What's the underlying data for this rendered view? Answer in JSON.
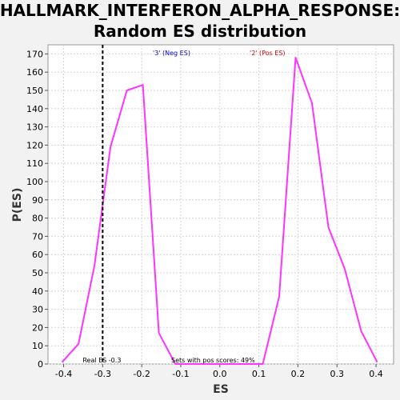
{
  "chart_data": {
    "type": "line",
    "title_line1": "HALLMARK_INTERFERON_ALPHA_RESPONSE:",
    "title_line2": "Random ES distribution",
    "xlabel": "ES",
    "ylabel": "P(ES)",
    "xlim": [
      -0.44,
      0.445
    ],
    "ylim": [
      0,
      175
    ],
    "x_ticks": [
      -0.4,
      -0.3,
      -0.2,
      -0.1,
      0.0,
      0.1,
      0.2,
      0.3,
      0.4
    ],
    "x_tick_labels": [
      "-0.4",
      "-0.3",
      "-0.2",
      "-0.1",
      "0.0",
      "0.1",
      "0.2",
      "0.3",
      "0.4"
    ],
    "y_ticks": [
      0,
      10,
      20,
      30,
      40,
      50,
      60,
      70,
      80,
      90,
      100,
      110,
      120,
      130,
      140,
      150,
      160,
      170
    ],
    "grid": true,
    "series": [
      {
        "color": "#ff33ff",
        "x": [
          -0.404,
          -0.362,
          -0.321,
          -0.28,
          -0.238,
          -0.197,
          -0.156,
          -0.114,
          0.11,
          0.152,
          0.194,
          0.236,
          0.278,
          0.32,
          0.362,
          0.403
        ],
        "y": [
          1,
          11,
          54,
          119,
          150,
          153,
          17,
          0,
          0,
          37,
          168,
          143,
          75,
          52,
          18,
          1
        ]
      }
    ],
    "real_es_line": {
      "x": -0.3,
      "label": "Real ES -0.3",
      "color": "#000000"
    },
    "annotations": {
      "neg_label": "'3' (Neg ES)",
      "neg_color": "#0000cc",
      "pos_label": "'2' (Pos ES)",
      "pos_color": "#cc0000",
      "pos_scores_label": "Sets with pos scores: 49%"
    }
  }
}
